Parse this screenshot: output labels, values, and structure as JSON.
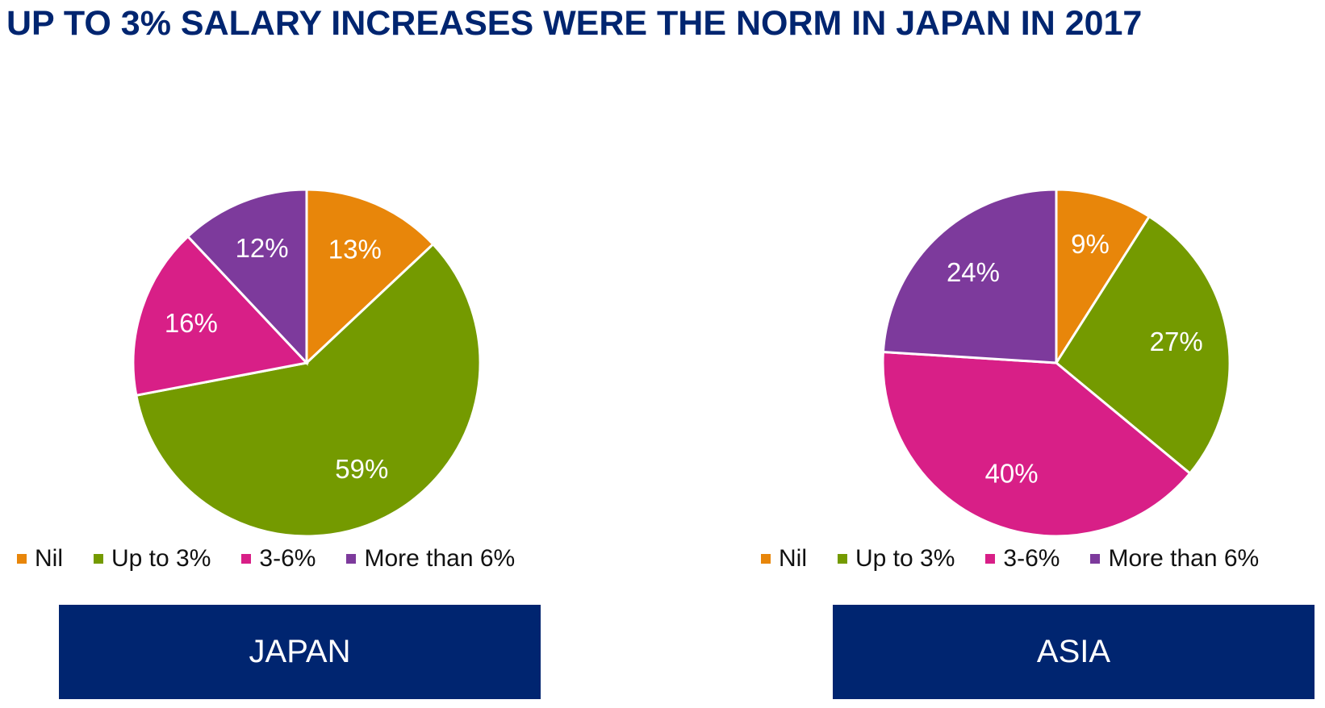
{
  "header": {
    "title": "UP TO 3% SALARY INCREASES WERE THE NORM IN JAPAN IN 2017"
  },
  "chart_data": [
    {
      "type": "pie",
      "title": "JAPAN",
      "categories": [
        "Nil",
        "Up to 3%",
        "3-6%",
        "More than 6%"
      ],
      "values": [
        13,
        59,
        16,
        12
      ],
      "value_labels": [
        "13%",
        "59%",
        "16%",
        "12%"
      ],
      "colors": [
        "#e8860a",
        "#749a00",
        "#d81f87",
        "#7d3a9c"
      ]
    },
    {
      "type": "pie",
      "title": "ASIA",
      "categories": [
        "Nil",
        "Up to 3%",
        "3-6%",
        "More than 6%"
      ],
      "values": [
        9,
        27,
        40,
        24
      ],
      "value_labels": [
        "9%",
        "27%",
        "40%",
        "24%"
      ],
      "colors": [
        "#e8860a",
        "#749a00",
        "#d81f87",
        "#7d3a9c"
      ]
    }
  ]
}
